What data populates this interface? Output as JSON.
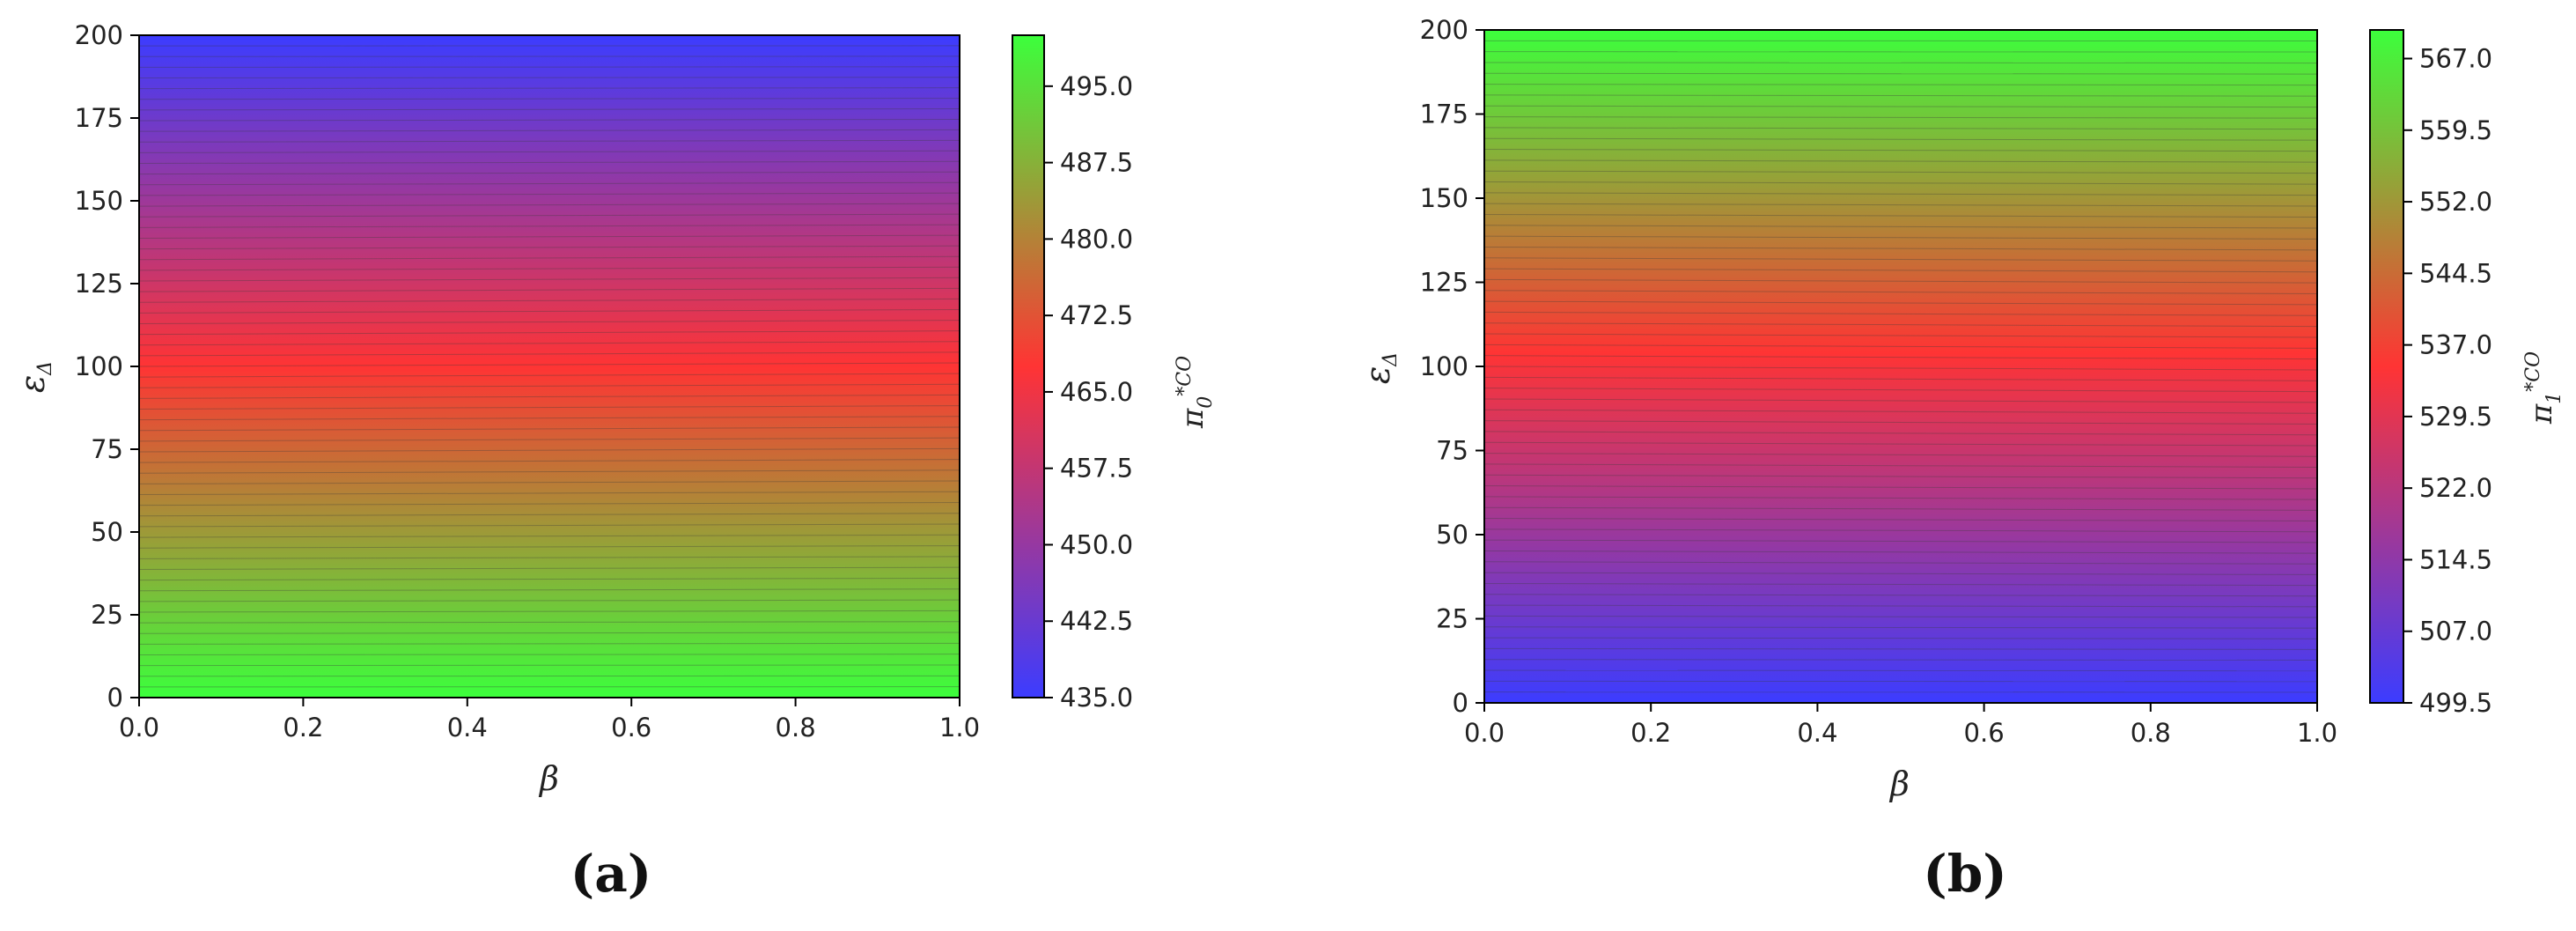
{
  "chart_data": [
    {
      "type": "heatmap",
      "panel_label": "(a)",
      "xlabel": "β",
      "ylabel": "ε",
      "ylabel_sub": "Δ",
      "xlim": [
        0.0,
        1.0
      ],
      "ylim": [
        0,
        200
      ],
      "x_ticks": [
        "0.0",
        "0.2",
        "0.4",
        "0.6",
        "0.8",
        "1.0"
      ],
      "y_ticks": [
        "0",
        "25",
        "50",
        "75",
        "100",
        "125",
        "150",
        "175",
        "200"
      ],
      "colorbar": {
        "label": "π",
        "label_sub": "0",
        "label_sup": "*CO",
        "range": [
          435.0,
          500.0
        ],
        "ticks": [
          "435.0",
          "442.5",
          "450.0",
          "457.5",
          "465.0",
          "472.5",
          "480.0",
          "487.5",
          "495.0"
        ],
        "colors": [
          "#3c3cff",
          "#ff3434",
          "#3cff3c"
        ]
      },
      "surface": {
        "description_values": "value along ε_Δ: ~500 at ε_Δ=0, ~466 at ε_Δ≈100 (red), ~435 at ε_Δ=200 (blue); nearly independent of β",
        "y": [
          0,
          25,
          50,
          75,
          100,
          125,
          150,
          175,
          200
        ],
        "values": [
          500,
          491,
          481,
          472,
          466,
          459,
          451,
          443,
          435
        ]
      }
    },
    {
      "type": "heatmap",
      "panel_label": "(b)",
      "xlabel": "β",
      "ylabel": "ε",
      "ylabel_sub": "Δ",
      "xlim": [
        0.0,
        1.0
      ],
      "ylim": [
        0,
        200
      ],
      "x_ticks": [
        "0.0",
        "0.2",
        "0.4",
        "0.6",
        "0.8",
        "1.0"
      ],
      "y_ticks": [
        "0",
        "25",
        "50",
        "75",
        "100",
        "125",
        "150",
        "175",
        "200"
      ],
      "colorbar": {
        "label": "π",
        "label_sub": "1",
        "label_sup": "*CO",
        "range": [
          499.5,
          570.0
        ],
        "ticks": [
          "499.5",
          "507.0",
          "514.5",
          "522.0",
          "529.5",
          "537.0",
          "544.5",
          "552.0",
          "559.5",
          "567.0"
        ],
        "colors": [
          "#3c3cff",
          "#ff3434",
          "#3cff3c"
        ]
      },
      "surface": {
        "y": [
          0,
          25,
          50,
          75,
          100,
          125,
          150,
          175,
          200
        ],
        "values": [
          500,
          508,
          517,
          527,
          536,
          545,
          553,
          561,
          570
        ]
      }
    }
  ]
}
